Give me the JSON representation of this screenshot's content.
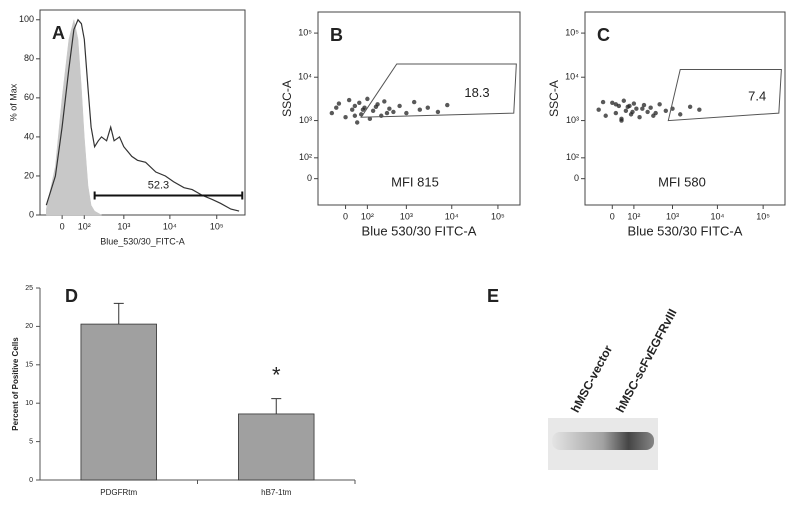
{
  "chart_data": [
    {
      "type": "line",
      "panel": "A",
      "xlabel": "Blue_530/30_FITC-A",
      "ylabel": "% of Max",
      "xscale": "biexponential",
      "xlim": [
        -100,
        400000
      ],
      "ylim": [
        0,
        105
      ],
      "xticks": [
        0,
        {
          "value": 100,
          "label": "10²"
        },
        {
          "value": 1000,
          "label": "10³"
        },
        {
          "value": 10000,
          "label": "10⁴"
        },
        {
          "value": 100000,
          "label": "10⁵"
        }
      ],
      "yticks": [
        0,
        20,
        40,
        60,
        80,
        100
      ],
      "series": [
        {
          "color": "#c8c8c8",
          "fill": true,
          "x": [
            -60,
            -20,
            0,
            20,
            40,
            60,
            80,
            100,
            130,
            160,
            200,
            300
          ],
          "values": [
            3,
            25,
            60,
            90,
            100,
            90,
            65,
            40,
            15,
            5,
            2,
            0
          ]
        },
        {
          "color": "#333333",
          "x": [
            -60,
            -20,
            0,
            20,
            40,
            60,
            80,
            100,
            130,
            160,
            200,
            250,
            300,
            400,
            500,
            600,
            800,
            1000,
            1500,
            2000,
            3000,
            5000,
            8000,
            12000,
            20000,
            30000,
            50000,
            80000,
            120000,
            200000,
            300000
          ],
          "values": [
            5,
            20,
            45,
            75,
            95,
            100,
            98,
            90,
            65,
            45,
            35,
            38,
            40,
            38,
            45,
            38,
            40,
            35,
            30,
            28,
            27,
            22,
            20,
            17,
            14,
            13,
            10,
            8,
            6,
            3,
            2
          ]
        }
      ],
      "gate": {
        "x": [
          200,
          350000
        ],
        "y": 10,
        "label": 52.3
      }
    },
    {
      "type": "scatter",
      "panel": "B",
      "xlabel": "Blue  530/30  FITC-A",
      "ylabel": "SSC-A",
      "xscale": "biexponential",
      "yscale": "biexponential",
      "xlim": [
        -150,
        300000
      ],
      "ylim": [
        -150,
        300000
      ],
      "xticks": [
        0,
        {
          "value": 100,
          "label": "10²"
        },
        {
          "value": 1000,
          "label": "10³"
        },
        {
          "value": 10000,
          "label": "10⁴"
        },
        {
          "value": 100000,
          "label": "10⁵"
        }
      ],
      "yticks": [
        0,
        {
          "value": 100,
          "label": "10²"
        },
        {
          "value": 1000,
          "label": "10³"
        },
        {
          "value": 10000,
          "label": "10⁴"
        },
        {
          "value": 100000,
          "label": "10⁵"
        }
      ],
      "series": [
        {
          "color": "#222222",
          "x": [
            -50,
            -20,
            0,
            10,
            20,
            30,
            40,
            50,
            60,
            80,
            100,
            120,
            150,
            200,
            250,
            300,
            400,
            500,
            700,
            1000,
            1500,
            2000,
            3000,
            5000,
            8000,
            -30,
            30,
            70,
            180,
            350
          ],
          "values": [
            1500,
            2500,
            1200,
            3000,
            1800,
            2200,
            900,
            2600,
            1400,
            2000,
            3200,
            1100,
            1700,
            2400,
            1300,
            2800,
            1900,
            1600,
            2200,
            1500,
            2700,
            1800,
            2000,
            1600,
            2300,
            2000,
            1300,
            1800,
            2100,
            1500
          ]
        }
      ],
      "gate": {
        "x": [
          600,
          250000,
          220000,
          60
        ],
        "y": [
          20000,
          20000,
          1500,
          1200
        ],
        "label": 18.3
      },
      "annotation": "MFI 815"
    },
    {
      "type": "scatter",
      "panel": "C",
      "xlabel": "Blue  530/30  FITC-A",
      "ylabel": "SSC-A",
      "xscale": "biexponential",
      "yscale": "biexponential",
      "xlim": [
        -150,
        300000
      ],
      "ylim": [
        -150,
        300000
      ],
      "xticks": [
        0,
        {
          "value": 100,
          "label": "10²"
        },
        {
          "value": 1000,
          "label": "10³"
        },
        {
          "value": 10000,
          "label": "10⁴"
        },
        {
          "value": 100000,
          "label": "10⁵"
        }
      ],
      "yticks": [
        0,
        {
          "value": 100,
          "label": "10²"
        },
        {
          "value": 1000,
          "label": "10³"
        },
        {
          "value": 10000,
          "label": "10⁴"
        },
        {
          "value": 100000,
          "label": "10⁵"
        }
      ],
      "series": [
        {
          "color": "#222222",
          "x": [
            -50,
            -20,
            0,
            10,
            20,
            30,
            40,
            50,
            60,
            80,
            100,
            120,
            150,
            200,
            250,
            300,
            400,
            500,
            700,
            1000,
            1500,
            2500,
            4000,
            -30,
            30,
            70,
            90,
            180,
            350,
            10
          ],
          "values": [
            1800,
            1300,
            2600,
            1500,
            2200,
            1100,
            2900,
            1700,
            2100,
            1400,
            2500,
            1900,
            1200,
            2300,
            1600,
            2000,
            1500,
            2400,
            1700,
            1900,
            1400,
            2100,
            1800,
            2700,
            1000,
            2200,
            1600,
            1900,
            1300,
            2400
          ]
        }
      ],
      "gate": {
        "x": [
          1500,
          250000,
          220000,
          800
        ],
        "y": [
          15000,
          15000,
          1500,
          1000
        ],
        "label": 7.4
      },
      "annotation": "MFI 580"
    },
    {
      "type": "bar",
      "panel": "D",
      "ylabel": "Percent of Positive Cells",
      "categories": [
        "PDGFRtm",
        "hB7-1tm"
      ],
      "values": [
        20.3,
        8.6
      ],
      "errors": [
        2.7,
        2.0
      ],
      "color": "#a0a0a0",
      "ylim": [
        0,
        25
      ],
      "yticks": [
        0,
        5,
        10,
        15,
        20,
        25
      ],
      "annotation": "*"
    }
  ],
  "blot": {
    "panel": "E",
    "lanes": [
      "hMSC-vector",
      "hMSC-scFvEGFRvIII"
    ]
  }
}
